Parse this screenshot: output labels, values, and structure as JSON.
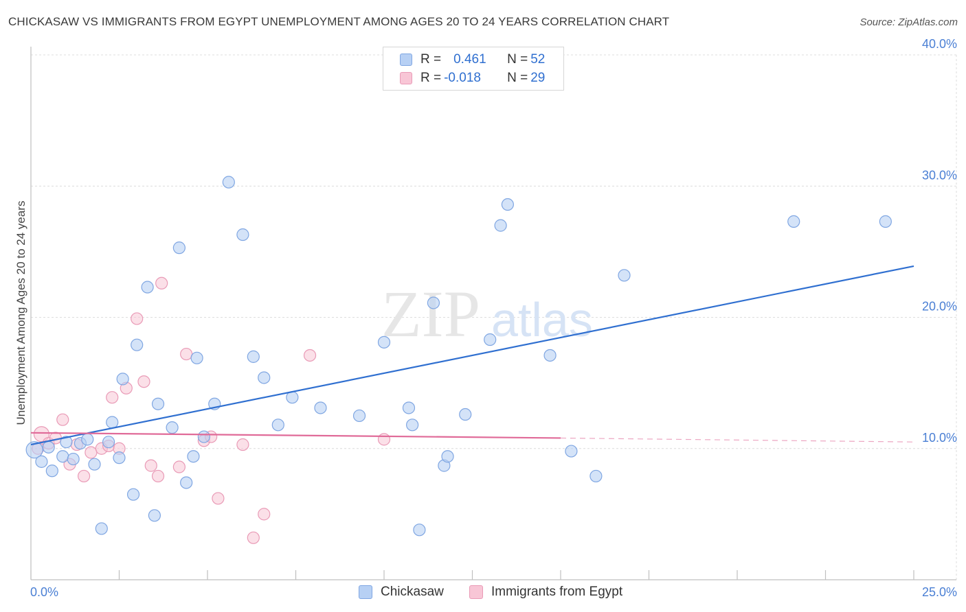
{
  "title": "CHICKASAW VS IMMIGRANTS FROM EGYPT UNEMPLOYMENT AMONG AGES 20 TO 24 YEARS CORRELATION CHART",
  "source": "Source: ZipAtlas.com",
  "watermark": {
    "zip": "ZIP",
    "atlas": "atlas"
  },
  "legend": {
    "series1": {
      "r_label": "R = ",
      "r_value": "0.461",
      "n_label": "N = ",
      "n_value": "52"
    },
    "series2": {
      "r_label": "R = ",
      "r_value": "-0.018",
      "n_label": "N = ",
      "n_value": "29"
    }
  },
  "bottom_legend": {
    "series1": "Chickasaw",
    "series2": "Immigrants from Egypt"
  },
  "colors": {
    "blue_fill": "#b7d0f4",
    "blue_stroke": "#7fa6e2",
    "blue_line": "#2f6fd0",
    "pink_fill": "#f8c6d6",
    "pink_stroke": "#e99ab6",
    "pink_line": "#e06a98",
    "tick_text": "#4a7fd4"
  },
  "chart_data": {
    "type": "scatter",
    "title": "CHICKASAW VS IMMIGRANTS FROM EGYPT UNEMPLOYMENT AMONG AGES 20 TO 24 YEARS CORRELATION CHART",
    "xlabel": "",
    "ylabel": "Unemployment Among Ages 20 to 24 years",
    "xlim": [
      0,
      25
    ],
    "ylim": [
      0,
      40
    ],
    "x_tick_labels": [
      "0.0%",
      "25.0%"
    ],
    "y_tick_labels": [
      {
        "value": 10,
        "label": "10.0%"
      },
      {
        "value": 20,
        "label": "20.0%"
      },
      {
        "value": 30,
        "label": "30.0%"
      },
      {
        "value": 40,
        "label": "40.0%"
      }
    ],
    "series": [
      {
        "name": "Chickasaw",
        "color": "blue",
        "points": [
          [
            0.1,
            9.9
          ],
          [
            0.3,
            9.0
          ],
          [
            0.5,
            10.1
          ],
          [
            0.6,
            8.3
          ],
          [
            0.9,
            9.4
          ],
          [
            1.0,
            10.5
          ],
          [
            1.2,
            9.2
          ],
          [
            1.4,
            10.4
          ],
          [
            1.6,
            10.7
          ],
          [
            1.8,
            8.8
          ],
          [
            2.0,
            3.9
          ],
          [
            2.2,
            10.5
          ],
          [
            2.3,
            12.0
          ],
          [
            2.5,
            9.3
          ],
          [
            2.6,
            15.3
          ],
          [
            2.9,
            6.5
          ],
          [
            3.0,
            17.9
          ],
          [
            3.3,
            22.3
          ],
          [
            3.5,
            4.9
          ],
          [
            3.6,
            13.4
          ],
          [
            4.0,
            11.6
          ],
          [
            4.2,
            25.3
          ],
          [
            4.4,
            7.4
          ],
          [
            4.6,
            9.4
          ],
          [
            4.7,
            16.9
          ],
          [
            4.9,
            10.9
          ],
          [
            5.2,
            13.4
          ],
          [
            5.6,
            30.3
          ],
          [
            6.0,
            26.3
          ],
          [
            6.3,
            17.0
          ],
          [
            6.6,
            15.4
          ],
          [
            7.0,
            11.8
          ],
          [
            7.4,
            13.9
          ],
          [
            8.2,
            13.1
          ],
          [
            9.3,
            12.5
          ],
          [
            10.0,
            18.1
          ],
          [
            10.7,
            13.1
          ],
          [
            10.8,
            11.8
          ],
          [
            11.0,
            3.8
          ],
          [
            11.4,
            21.1
          ],
          [
            11.7,
            8.7
          ],
          [
            11.8,
            9.4
          ],
          [
            12.3,
            12.6
          ],
          [
            13.0,
            18.3
          ],
          [
            13.3,
            27.0
          ],
          [
            13.5,
            28.6
          ],
          [
            14.7,
            17.1
          ],
          [
            15.3,
            9.8
          ],
          [
            16.0,
            7.9
          ],
          [
            16.8,
            23.2
          ],
          [
            21.6,
            27.3
          ],
          [
            24.2,
            27.3
          ]
        ]
      },
      {
        "name": "Immigrants from Egypt",
        "color": "pink",
        "points": [
          [
            0.2,
            10.0
          ],
          [
            0.3,
            11.1
          ],
          [
            0.5,
            10.4
          ],
          [
            0.7,
            10.8
          ],
          [
            0.9,
            12.2
          ],
          [
            1.1,
            8.8
          ],
          [
            1.3,
            10.3
          ],
          [
            1.5,
            7.9
          ],
          [
            1.7,
            9.7
          ],
          [
            2.0,
            10.0
          ],
          [
            2.2,
            10.2
          ],
          [
            2.3,
            13.9
          ],
          [
            2.5,
            10.0
          ],
          [
            2.7,
            14.6
          ],
          [
            3.0,
            19.9
          ],
          [
            3.2,
            15.1
          ],
          [
            3.4,
            8.7
          ],
          [
            3.6,
            7.9
          ],
          [
            3.7,
            22.6
          ],
          [
            4.2,
            8.6
          ],
          [
            4.4,
            17.2
          ],
          [
            4.9,
            10.6
          ],
          [
            5.1,
            10.9
          ],
          [
            5.3,
            6.2
          ],
          [
            6.0,
            10.3
          ],
          [
            6.3,
            3.2
          ],
          [
            6.6,
            5.0
          ],
          [
            7.9,
            17.1
          ],
          [
            10.0,
            10.7
          ]
        ]
      }
    ],
    "trend_lines": [
      {
        "series": "Chickasaw",
        "x": [
          0.0,
          25.0
        ],
        "y": [
          10.3,
          23.9
        ]
      },
      {
        "series": "Immigrants from Egypt",
        "x": [
          0.0,
          15.0
        ],
        "y": [
          11.2,
          10.8
        ],
        "dashed_extension_to": [
          25.0,
          10.5
        ]
      }
    ]
  }
}
